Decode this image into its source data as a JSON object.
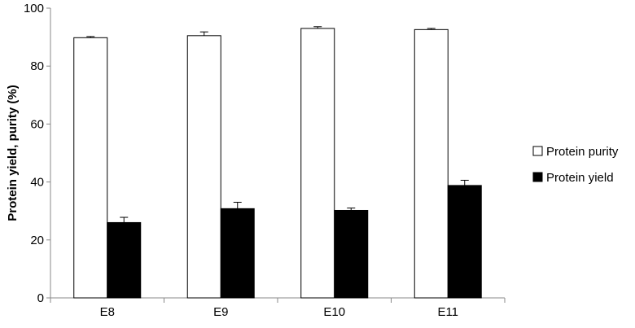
{
  "chart_data": {
    "type": "bar",
    "title": "",
    "xlabel": "",
    "ylabel": "Protein yield, purity (%)",
    "ylim": [
      0,
      100
    ],
    "yticks": [
      0,
      20,
      40,
      60,
      80,
      100
    ],
    "grid": false,
    "legend_position": "right",
    "categories": [
      "E8",
      "E9",
      "E10",
      "E11"
    ],
    "series": [
      {
        "name": "Protein purity",
        "color": "#ffffff",
        "values": [
          89.8,
          90.5,
          93.0,
          92.6
        ],
        "errors": [
          0.4,
          1.3,
          0.6,
          0.4
        ]
      },
      {
        "name": "Protein yield",
        "color": "#000000",
        "values": [
          26.0,
          30.8,
          30.2,
          38.8
        ],
        "errors": [
          1.8,
          2.2,
          0.8,
          1.8
        ]
      }
    ]
  }
}
